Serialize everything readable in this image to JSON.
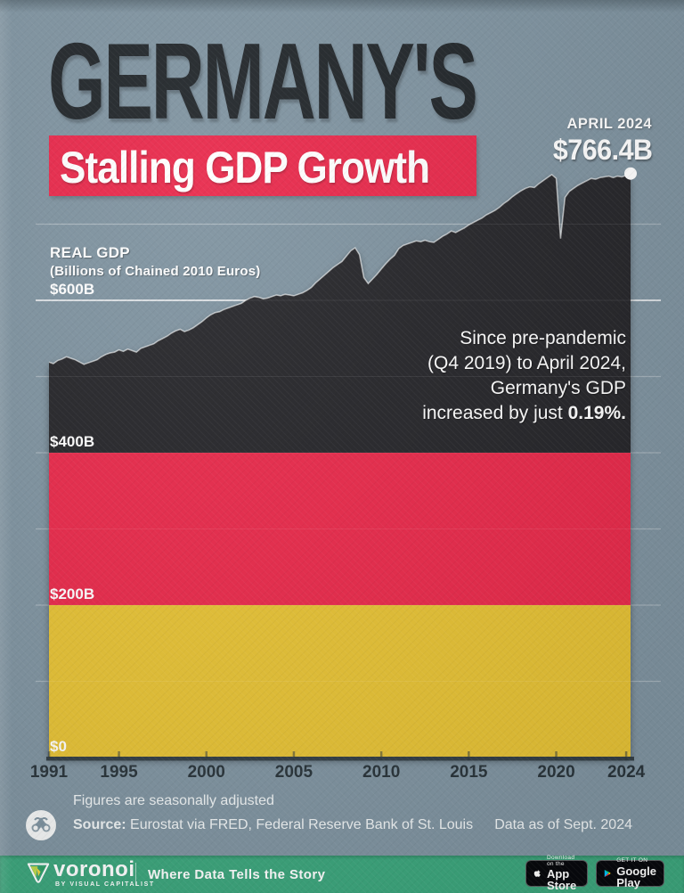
{
  "header": {
    "title": "GERMANY'S",
    "subtitle": "Stalling GDP Growth"
  },
  "chart_data": {
    "type": "area",
    "title": "REAL GDP",
    "subtitle": "(Billions of Chained 2010 Euros)",
    "x_start": 1991,
    "x_step": 0.25,
    "values": [
      519,
      517,
      521,
      523,
      526,
      524,
      522,
      519,
      516,
      518,
      520,
      522,
      526,
      529,
      531,
      532,
      535,
      533,
      536,
      534,
      532,
      537,
      539,
      541,
      543,
      547,
      550,
      553,
      557,
      560,
      562,
      559,
      561,
      564,
      568,
      572,
      577,
      581,
      584,
      585,
      588,
      590,
      592,
      594,
      596,
      600,
      603,
      605,
      604,
      602,
      603,
      605,
      607,
      606,
      608,
      607,
      606,
      608,
      610,
      613,
      617,
      623,
      628,
      633,
      638,
      643,
      647,
      651,
      658,
      665,
      669,
      660,
      630,
      622,
      628,
      634,
      641,
      648,
      654,
      659,
      668,
      672,
      674,
      676,
      678,
      677,
      679,
      677,
      676,
      680,
      684,
      687,
      691,
      689,
      692,
      695,
      699,
      702,
      705,
      708,
      712,
      715,
      718,
      722,
      727,
      731,
      736,
      740,
      744,
      747,
      749,
      748,
      753,
      757,
      761,
      765,
      760,
      681,
      735,
      743,
      747,
      751,
      754,
      757,
      760,
      759,
      761,
      762,
      763,
      761,
      763,
      762,
      764,
      766.4
    ],
    "ylim": [
      0,
      790
    ],
    "grid": "on",
    "x_ticks": [
      1991,
      1995,
      2000,
      2005,
      2010,
      2015,
      2020,
      2024
    ],
    "y_axis": [
      {
        "value": 600,
        "label": "$600B"
      },
      {
        "value": 400,
        "label": "$400B"
      },
      {
        "value": 200,
        "label": "$200B"
      },
      {
        "value": 0,
        "label": "$0"
      }
    ],
    "y_gridlines_unlabeled": [
      100,
      300,
      500,
      700
    ],
    "flag_bands": [
      {
        "from": 400,
        "to": null,
        "color": "#26272a"
      },
      {
        "from": 200,
        "to": 400,
        "color": "#e8294b"
      },
      {
        "from": 0,
        "to": 200,
        "color": "#e5c135"
      }
    ],
    "end_point": {
      "label": "APRIL 2024",
      "value_label": "$766.4B",
      "value": 766.4
    }
  },
  "annotation": {
    "lines": [
      [
        {
          "t": "Since pre-pandemic"
        }
      ],
      [
        {
          "t": "(Q4 2019) to April 2024,"
        }
      ],
      [
        {
          "t": "Germany's GDP"
        }
      ],
      [
        {
          "t": "increased by just "
        },
        {
          "t": "0.19%.",
          "b": true
        }
      ]
    ]
  },
  "footer": {
    "note": "Figures are seasonally adjusted",
    "source_label": "Source:",
    "source_text": " Eurostat via FRED, Federal Reserve Bank of St. Louis",
    "data_as_of": "Data as of Sept. 2024"
  },
  "brandbar": {
    "logo_text": "voronoi",
    "logo_sub": "BY VISUAL CAPITALIST",
    "tagline": "Where Data Tells the Story",
    "app_store": {
      "line1": "Download on the",
      "line2": "App Store"
    },
    "google_play": {
      "line1": "GET IT ON",
      "line2": "Google Play"
    }
  },
  "colors": {
    "background": "#7f93a0",
    "flag_black": "#26272a",
    "flag_red": "#e8294b",
    "flag_gold": "#e5c135",
    "banner_red": "#e8294b",
    "brand_green": "#3ca57c"
  }
}
